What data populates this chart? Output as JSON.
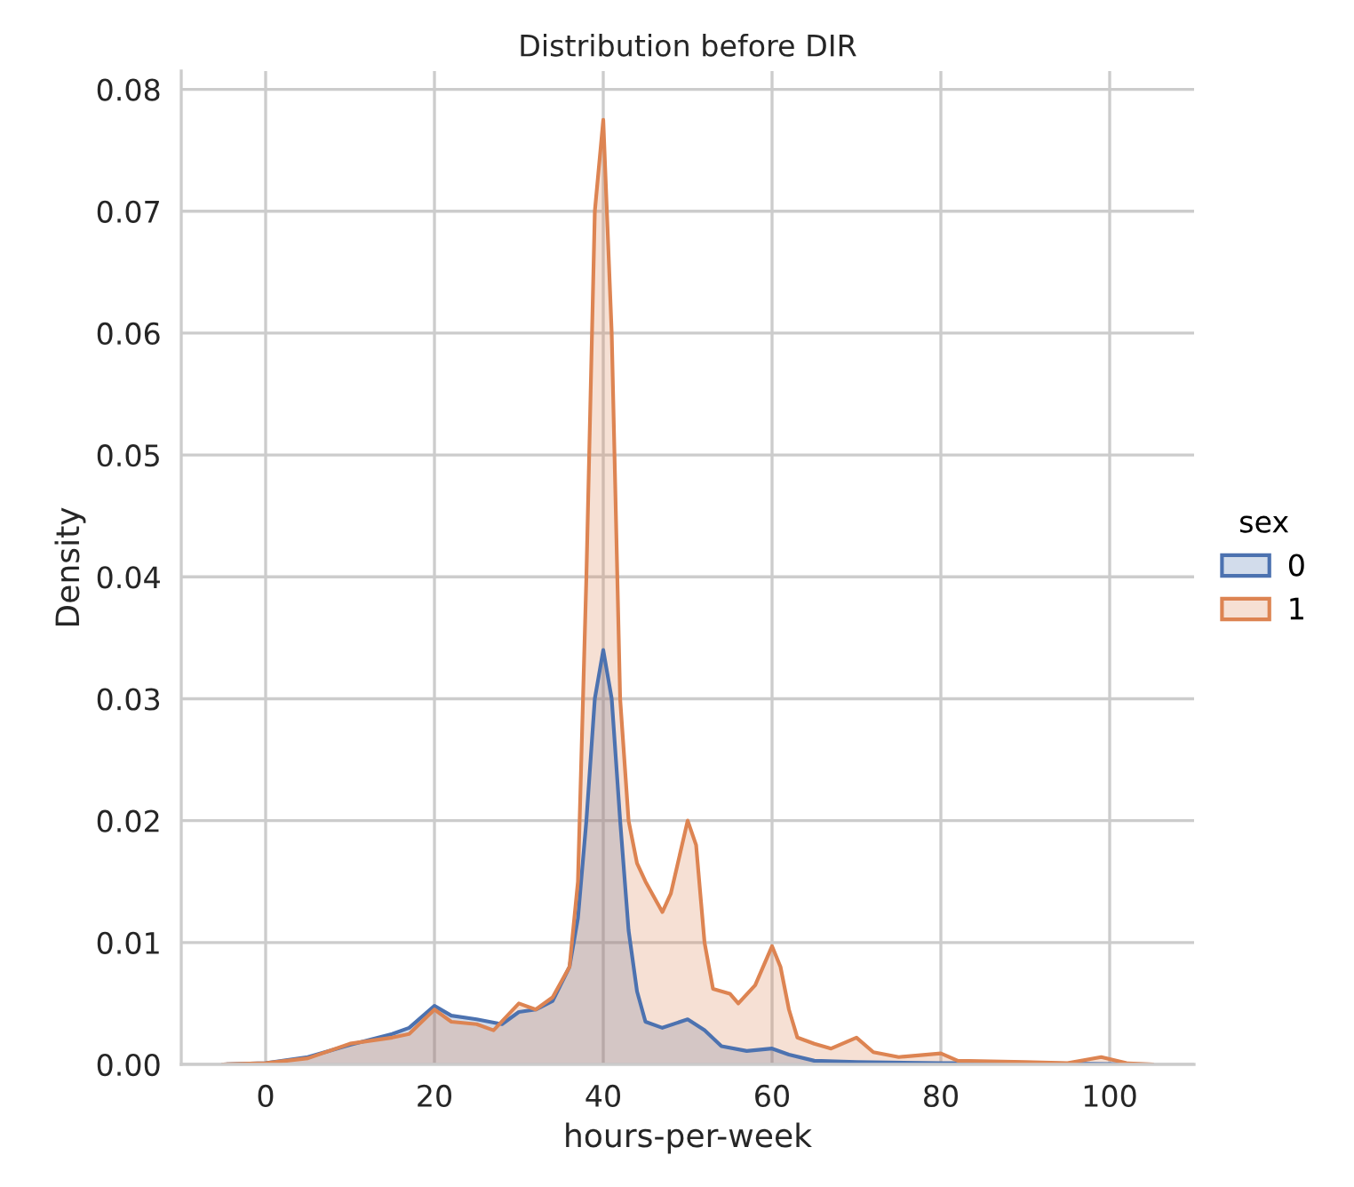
{
  "chart_data": {
    "type": "area",
    "title": "Distribution before DIR",
    "xlabel": "hours-per-week",
    "ylabel": "Density",
    "legend_title": "sex",
    "legend": "right",
    "grid": true,
    "xlim": [
      -10,
      110
    ],
    "xticks": [
      0,
      20,
      40,
      60,
      80,
      100
    ],
    "ylim": [
      0,
      0.0815
    ],
    "yticks": [
      {
        "value": 0,
        "label": "0.00"
      },
      {
        "value": 0.01,
        "label": "0.01"
      },
      {
        "value": 0.02,
        "label": "0.02"
      },
      {
        "value": 0.03,
        "label": "0.03"
      },
      {
        "value": 0.04,
        "label": "0.04"
      },
      {
        "value": 0.05,
        "label": "0.05"
      },
      {
        "value": 0.06,
        "label": "0.06"
      },
      {
        "value": 0.07,
        "label": "0.07"
      },
      {
        "value": 0.08,
        "label": "0.08"
      }
    ],
    "series": [
      {
        "name": "0",
        "color": "#4c72b0",
        "x": [
          -5,
          0,
          5,
          10,
          15,
          17,
          20,
          22,
          25,
          28,
          30,
          32,
          34,
          36,
          37,
          38,
          39,
          40,
          41,
          42,
          43,
          44,
          45,
          47,
          50,
          52,
          54,
          57,
          60,
          62,
          65,
          70,
          80,
          90,
          105
        ],
        "values": [
          0,
          0.0001,
          0.0006,
          0.0016,
          0.0025,
          0.003,
          0.0048,
          0.004,
          0.0037,
          0.0033,
          0.0043,
          0.0045,
          0.0052,
          0.008,
          0.012,
          0.02,
          0.03,
          0.034,
          0.03,
          0.02,
          0.011,
          0.006,
          0.0035,
          0.003,
          0.0037,
          0.0028,
          0.0015,
          0.0011,
          0.0013,
          0.0008,
          0.0003,
          0.0002,
          0.0001,
          0.0001,
          0
        ]
      },
      {
        "name": "1",
        "color": "#dd8452",
        "x": [
          -5,
          0,
          5,
          10,
          15,
          17,
          20,
          22,
          25,
          27,
          30,
          32,
          34,
          36,
          37,
          38,
          39,
          40,
          41,
          42,
          43,
          44,
          45,
          47,
          48,
          50,
          51,
          52,
          53,
          55,
          56,
          58,
          60,
          61,
          62,
          63,
          65,
          67,
          70,
          72,
          75,
          80,
          82,
          90,
          95,
          99,
          102,
          105
        ],
        "values": [
          0,
          0.0001,
          0.0005,
          0.0017,
          0.0022,
          0.0025,
          0.0045,
          0.0035,
          0.0033,
          0.0028,
          0.005,
          0.0045,
          0.0055,
          0.008,
          0.015,
          0.04,
          0.07,
          0.0775,
          0.06,
          0.03,
          0.02,
          0.0165,
          0.015,
          0.0125,
          0.014,
          0.02,
          0.018,
          0.01,
          0.0062,
          0.0058,
          0.005,
          0.0065,
          0.0097,
          0.008,
          0.0045,
          0.0022,
          0.0017,
          0.0013,
          0.0022,
          0.001,
          0.0006,
          0.0009,
          0.0003,
          0.0002,
          0.0001,
          0.0006,
          0.0001,
          0
        ]
      }
    ]
  }
}
